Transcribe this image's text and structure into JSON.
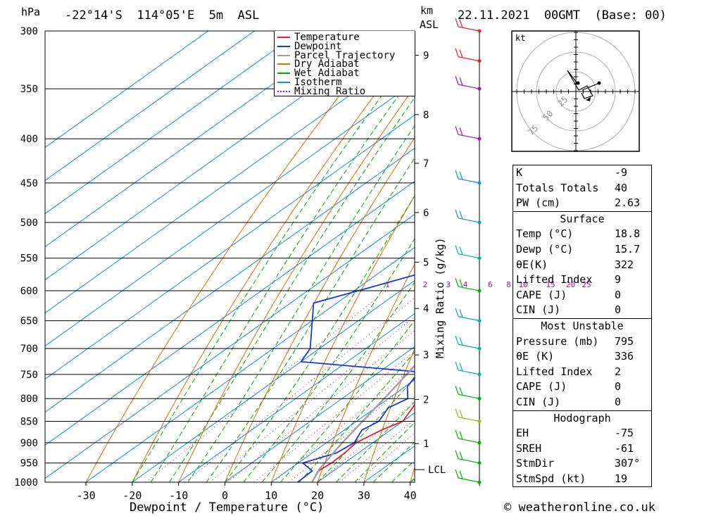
{
  "header": {
    "left_unit": "hPa",
    "location": "-22°14'S  114°05'E  5m  ASL",
    "km_label": "km",
    "asl_label": "ASL",
    "datetime": "22.11.2021  00GMT  (Base: 00)"
  },
  "legend": [
    {
      "label": "Temperature",
      "color": "#e8202a",
      "style": "solid"
    },
    {
      "label": "Dewpoint",
      "color": "#1838d8",
      "style": "solid"
    },
    {
      "label": "Parcel Trajectory",
      "color": "#a0a0a0",
      "style": "solid"
    },
    {
      "label": "Dry Adiabat",
      "color": "#e07000",
      "style": "solid"
    },
    {
      "label": "Wet Adiabat",
      "color": "#00b000",
      "style": "solid"
    },
    {
      "label": "Isotherm",
      "color": "#1090e0",
      "style": "solid"
    },
    {
      "label": "Mixing Ratio",
      "color": "#d01080",
      "style": "dotted"
    }
  ],
  "chart_data": {
    "type": "line",
    "subtype": "skew-T log-p",
    "xlabel": "Dewpoint / Temperature (°C)",
    "ylabel_left": "hPa",
    "ylabel_right": "Mixing Ratio (g/kg)",
    "x_ticks": [
      -30,
      -20,
      -10,
      0,
      10,
      20,
      30,
      40
    ],
    "xlim": [
      -40,
      40
    ],
    "pressure_ticks": [
      300,
      350,
      400,
      450,
      500,
      550,
      600,
      650,
      700,
      750,
      800,
      850,
      900,
      950,
      1000
    ],
    "km_ticks": [
      {
        "label": "9",
        "p": 320
      },
      {
        "label": "8",
        "p": 375
      },
      {
        "label": "7",
        "p": 427
      },
      {
        "label": "6",
        "p": 487
      },
      {
        "label": "5",
        "p": 556
      },
      {
        "label": "4",
        "p": 629
      },
      {
        "label": "3",
        "p": 712
      },
      {
        "label": "2",
        "p": 802
      },
      {
        "label": "1",
        "p": 902
      }
    ],
    "lcl_label": "LCL",
    "lcl_p": 967,
    "mixing_ratio_labels": [
      "1",
      "2",
      "3",
      "4",
      "6",
      "8",
      "10",
      "15",
      "20",
      "25"
    ],
    "series": [
      {
        "name": "Temperature",
        "color": "#e8202a",
        "points": [
          [
            1000,
            18.8
          ],
          [
            970,
            16.8
          ],
          [
            950,
            17.2
          ],
          [
            925,
            17.0
          ],
          [
            900,
            16.4
          ],
          [
            870,
            18.0
          ],
          [
            850,
            20.0
          ],
          [
            820,
            18.0
          ],
          [
            800,
            16.6
          ],
          [
            780,
            18.0
          ],
          [
            750,
            17.0
          ],
          [
            730,
            17.6
          ],
          [
            700,
            17.4
          ],
          [
            650,
            15.6
          ],
          [
            620,
            14.4
          ],
          [
            600,
            13.0
          ],
          [
            560,
            10.2
          ],
          [
            500,
            7.4
          ],
          [
            450,
            5.2
          ],
          [
            400,
            1.6
          ],
          [
            395,
            2.8
          ],
          [
            350,
            -1.2
          ],
          [
            320,
            -4.8
          ],
          [
            300,
            -6.0
          ]
        ]
      },
      {
        "name": "Dewpoint",
        "color": "#1838d8",
        "points": [
          [
            1000,
            15.7
          ],
          [
            970,
            15.4
          ],
          [
            950,
            11.0
          ],
          [
            925,
            15.2
          ],
          [
            900,
            16.0
          ],
          [
            870,
            13.8
          ],
          [
            850,
            14.8
          ],
          [
            820,
            12.8
          ],
          [
            800,
            14.2
          ],
          [
            775,
            10.5
          ],
          [
            745,
            8.5
          ],
          [
            725,
            -20.0
          ],
          [
            700,
            -22.0
          ],
          [
            620,
            -35.0
          ],
          [
            610,
            -32.0
          ],
          [
            570,
            -20.0
          ],
          [
            500,
            -24.0
          ],
          [
            450,
            -24.0
          ],
          [
            400,
            -26.0
          ],
          [
            350,
            -31.0
          ],
          [
            320,
            -35.0
          ],
          [
            300,
            -36.0
          ]
        ]
      },
      {
        "name": "Parcel Trajectory",
        "color": "#a0a0a0",
        "points": [
          [
            1000,
            18.8
          ],
          [
            967,
            16.5
          ],
          [
            900,
            13.4
          ],
          [
            800,
            9.1
          ],
          [
            700,
            4.0
          ],
          [
            600,
            -2.2
          ],
          [
            500,
            -10.8
          ],
          [
            400,
            -22.5
          ],
          [
            300,
            -39.5
          ]
        ]
      }
    ],
    "wind_barbs": [
      {
        "p": 1000,
        "color": "#00b000"
      },
      {
        "p": 950,
        "color": "#00b000"
      },
      {
        "p": 900,
        "color": "#00b000"
      },
      {
        "p": 850,
        "color": "#90c010"
      },
      {
        "p": 800,
        "color": "#00b000"
      },
      {
        "p": 750,
        "color": "#00b0a0"
      },
      {
        "p": 700,
        "color": "#00b0a0"
      },
      {
        "p": 650,
        "color": "#00b0a0"
      },
      {
        "p": 600,
        "color": "#00b000"
      },
      {
        "p": 550,
        "color": "#00b0a0"
      },
      {
        "p": 500,
        "color": "#1090e0"
      },
      {
        "p": 450,
        "color": "#1090e0"
      },
      {
        "p": 400,
        "color": "#a010c0"
      },
      {
        "p": 350,
        "color": "#a010c0"
      },
      {
        "p": 325,
        "color": "#e8202a"
      },
      {
        "p": 300,
        "color": "#e8202a"
      }
    ]
  },
  "hodograph": {
    "unit": "kt",
    "ring_labels": [
      "25",
      "50",
      "75"
    ]
  },
  "indices": {
    "top": [
      {
        "key": "K",
        "value": "-9"
      },
      {
        "key": "Totals Totals",
        "value": "40"
      },
      {
        "key": "PW (cm)",
        "value": "2.63"
      }
    ],
    "surface": {
      "title": "Surface",
      "rows": [
        {
          "key": "Temp (°C)",
          "value": "18.8"
        },
        {
          "key": "Dewp (°C)",
          "value": "15.7"
        },
        {
          "key": "θE(K)",
          "value": "322"
        },
        {
          "key": "Lifted Index",
          "value": "9"
        },
        {
          "key": "CAPE (J)",
          "value": "0"
        },
        {
          "key": "CIN (J)",
          "value": "0"
        }
      ]
    },
    "most_unstable": {
      "title": "Most Unstable",
      "rows": [
        {
          "key": "Pressure (mb)",
          "value": "795"
        },
        {
          "key": "θE (K)",
          "value": "336"
        },
        {
          "key": "Lifted Index",
          "value": "2"
        },
        {
          "key": "CAPE (J)",
          "value": "0"
        },
        {
          "key": "CIN (J)",
          "value": "0"
        }
      ]
    },
    "hodograph": {
      "title": "Hodograph",
      "rows": [
        {
          "key": "EH",
          "value": "-75"
        },
        {
          "key": "SREH",
          "value": "-61"
        },
        {
          "key": "StmDir",
          "value": "307°"
        },
        {
          "key": "StmSpd (kt)",
          "value": "19"
        }
      ]
    }
  },
  "footer": {
    "copyright": "© weatheronline.co.uk"
  }
}
